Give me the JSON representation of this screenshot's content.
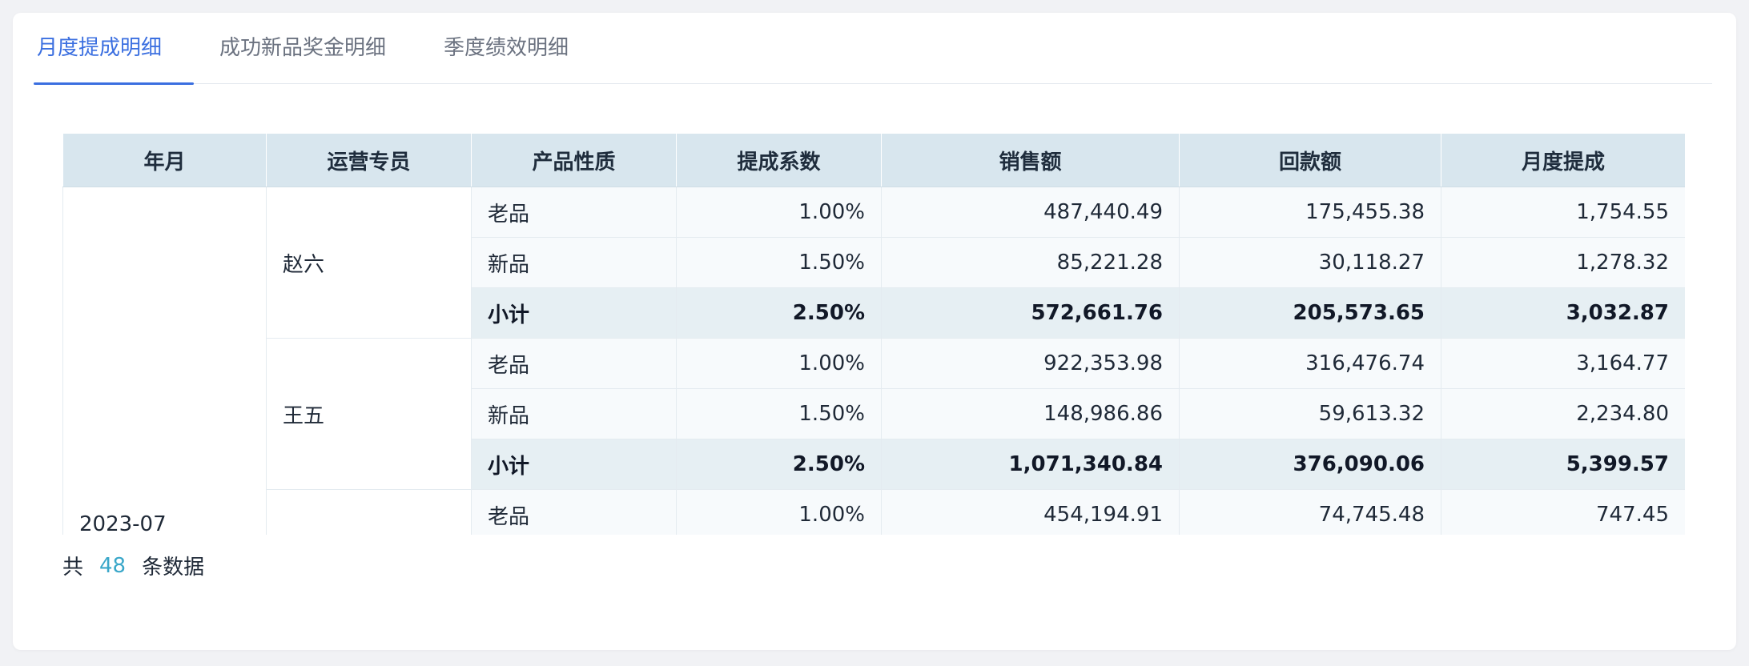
{
  "tabs": [
    {
      "label": "月度提成明细",
      "active": true
    },
    {
      "label": "成功新品奖金明细",
      "active": false
    },
    {
      "label": "季度绩效明细",
      "active": false
    }
  ],
  "table": {
    "headers": [
      "年月",
      "运营专员",
      "产品性质",
      "提成系数",
      "销售额",
      "回款额",
      "月度提成"
    ],
    "year_month": "2023-07",
    "groups": [
      {
        "specialist": "赵六",
        "rows": [
          {
            "type": "老品",
            "rate": "1.00%",
            "sales": "487,440.49",
            "payment": "175,455.38",
            "commission": "1,754.55"
          },
          {
            "type": "新品",
            "rate": "1.50%",
            "sales": "85,221.28",
            "payment": "30,118.27",
            "commission": "1,278.32"
          },
          {
            "type": "小计",
            "rate": "2.50%",
            "sales": "572,661.76",
            "payment": "205,573.65",
            "commission": "3,032.87"
          }
        ]
      },
      {
        "specialist": "王五",
        "rows": [
          {
            "type": "老品",
            "rate": "1.00%",
            "sales": "922,353.98",
            "payment": "316,476.74",
            "commission": "3,164.77"
          },
          {
            "type": "新品",
            "rate": "1.50%",
            "sales": "148,986.86",
            "payment": "59,613.32",
            "commission": "2,234.80"
          },
          {
            "type": "小计",
            "rate": "2.50%",
            "sales": "1,071,340.84",
            "payment": "376,090.06",
            "commission": "5,399.57"
          }
        ]
      },
      {
        "specialist": "",
        "rows": [
          {
            "type": "老品",
            "rate": "1.00%",
            "sales": "454,194.91",
            "payment": "74,745.48",
            "commission": "747.45"
          }
        ]
      }
    ]
  },
  "footer": {
    "prefix": "共",
    "count": "48",
    "suffix": "条数据"
  },
  "colors": {
    "accent": "#3b6fe0",
    "header_bg": "#d8e6ee",
    "subtotal_bg": "#e6eff3",
    "count_color": "#3aa7c9"
  }
}
